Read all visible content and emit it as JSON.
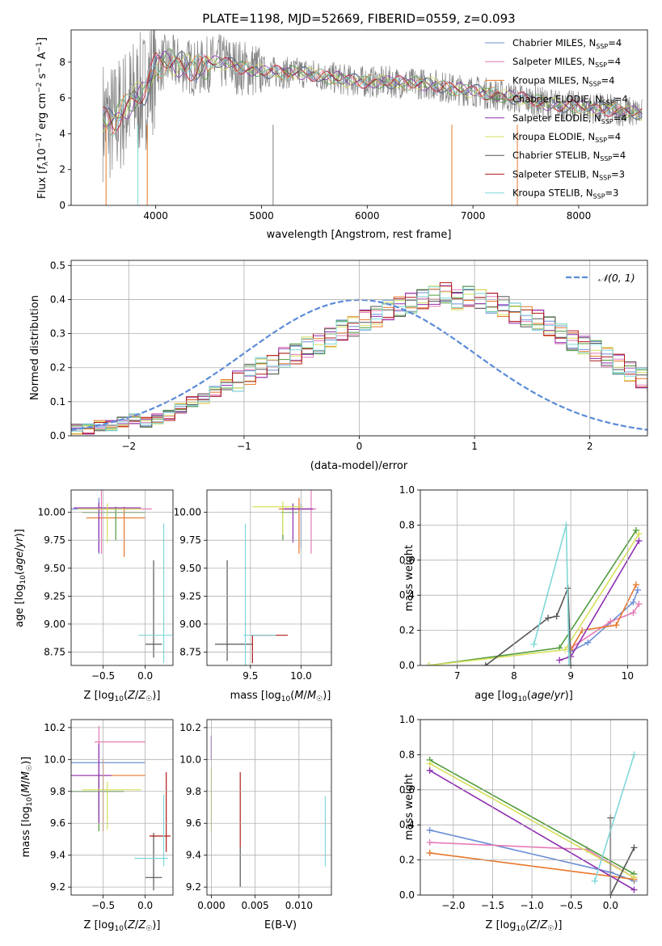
{
  "colors": {
    "chabrier_miles": "#6b8fd6",
    "salpeter_miles": "#e57ab5",
    "kroupa_miles": "#e8772a",
    "chabrier_elodie": "#4e9a3c",
    "salpeter_elodie": "#8e2fb0",
    "kroupa_elodie": "#d6e05a",
    "chabrier_stelib": "#555555",
    "salpeter_stelib": "#b01818",
    "kroupa_stelib": "#7fd8d8",
    "spectrum": "#808080",
    "gauss": "#5b8bd8"
  },
  "chart_data": [
    {
      "type": "line",
      "title": "PLATE=1198, MJD=52669, FIBERID=0559, z=0.093",
      "xlabel": "wavelength [Angstrom, rest frame]",
      "ylabel": "Flux [f_λ10⁻¹⁷ erg cm⁻² s⁻¹ A⁻¹]",
      "xlim": [
        3200,
        8650
      ],
      "ylim": [
        0,
        9.8
      ],
      "xticks": [
        "4000",
        "5000",
        "6000",
        "7000",
        "8000"
      ],
      "yticks": [
        "0",
        "2",
        "4",
        "6",
        "8"
      ],
      "legend": [
        "Chabrier MILES, N",
        "Salpeter MILES, N",
        "Kroupa MILES, N",
        "Chabrier ELODIE, N",
        "Salpeter ELODIE, N",
        "Kroupa ELODIE, N",
        "Chabrier STELIB, N",
        "Salpeter STELIB, N",
        "Kroupa STELIB, N"
      ],
      "legend_sub": "SSP",
      "legend_counts": [
        "=4",
        "=4",
        "=4",
        "=4",
        "=4",
        "=4",
        "=4",
        "=3",
        "=3"
      ],
      "legend_placement": "right",
      "model_x": [
        3500,
        3600,
        3700,
        3800,
        3900,
        4000,
        4100,
        4200,
        4300,
        4400,
        4500,
        4600,
        4700,
        4800,
        4900,
        5000,
        5200,
        5400,
        5600,
        5800,
        6000,
        6200,
        6400,
        6600,
        6800,
        7000,
        7200,
        7400,
        7600,
        7800,
        8000,
        8200,
        8400,
        8600
      ],
      "model_y": [
        4.8,
        4.6,
        5.4,
        6.0,
        6.4,
        7.8,
        8.0,
        7.9,
        7.8,
        7.6,
        7.9,
        8.0,
        7.9,
        7.7,
        7.6,
        7.5,
        7.4,
        7.4,
        7.2,
        7.0,
        6.9,
        6.9,
        6.8,
        6.8,
        6.5,
        6.4,
        6.2,
        6.0,
        5.8,
        5.6,
        5.5,
        5.4,
        5.3,
        5.1
      ]
    },
    {
      "type": "bar",
      "xlabel": "(data-model)/error",
      "ylabel": "Normed distribution",
      "xlim": [
        -2.5,
        2.5
      ],
      "ylim": [
        0,
        0.515
      ],
      "xticks": [
        "−2",
        "−1",
        "0",
        "1",
        "2"
      ],
      "yticks": [
        "0.0",
        "0.1",
        "0.2",
        "0.3",
        "0.4",
        "0.5"
      ],
      "legend": [
        "𝒩(0, 1)"
      ],
      "legend_placement": "top-right",
      "bin_width": 0.1,
      "hist_values": [
        0.02,
        0.02,
        0.03,
        0.03,
        0.04,
        0.05,
        0.04,
        0.05,
        0.06,
        0.08,
        0.1,
        0.11,
        0.13,
        0.15,
        0.16,
        0.18,
        0.2,
        0.21,
        0.23,
        0.24,
        0.26,
        0.27,
        0.29,
        0.31,
        0.32,
        0.34,
        0.35,
        0.37,
        0.38,
        0.39,
        0.4,
        0.41,
        0.42,
        0.4,
        0.41,
        0.4,
        0.39,
        0.38,
        0.36,
        0.35,
        0.34,
        0.32,
        0.3,
        0.28,
        0.27,
        0.25,
        0.23,
        0.21,
        0.19,
        0.17,
        0.16,
        0.14,
        0.12,
        0.11,
        0.1,
        0.09,
        0.07,
        0.06,
        0.05,
        0.05,
        0.04,
        0.04,
        0.03,
        0.03,
        0.02,
        0.02,
        0.02,
        0.02,
        0.02,
        0.02
      ],
      "hist_start": -2.5
    },
    {
      "type": "scatter",
      "xlabel": "Z [log₁₀(Z/Z☉)]",
      "ylabel": "age  [log₁₀(age/yr)]",
      "xlim": [
        -0.88,
        0.33
      ],
      "ylim": [
        8.63,
        10.2
      ],
      "xticks": [
        "−0.5",
        "0.0"
      ],
      "yticks": [
        "8.75",
        "9.00",
        "9.25",
        "9.50",
        "9.75",
        "10.00"
      ],
      "points": [
        {
          "x": -0.55,
          "y": 10.03,
          "xerr": [
            0.5,
            0.35
          ],
          "yerr": [
            0.4,
            0.1
          ],
          "c": "chabrier_miles"
        },
        {
          "x": -0.52,
          "y": 10.03,
          "xerr": [
            0.1,
            0.6
          ],
          "yerr": [
            0.4,
            0.18
          ],
          "c": "salpeter_miles"
        },
        {
          "x": -0.25,
          "y": 9.95,
          "xerr": [
            0.45,
            0.25
          ],
          "yerr": [
            0.35,
            0.1
          ],
          "c": "kroupa_miles"
        },
        {
          "x": -0.35,
          "y": 10.0,
          "xerr": [
            0.4,
            0.35
          ],
          "yerr": [
            0.25,
            0.05
          ],
          "c": "chabrier_elodie"
        },
        {
          "x": -0.55,
          "y": 10.04,
          "xerr": [
            0.3,
            0.5
          ],
          "yerr": [
            0.4,
            0.05
          ],
          "c": "salpeter_elodie"
        },
        {
          "x": -0.45,
          "y": 10.03,
          "xerr": [
            0.35,
            0.4
          ],
          "yerr": [
            0.3,
            0.05
          ],
          "c": "kroupa_elodie"
        },
        {
          "x": 0.1,
          "y": 8.82,
          "xerr": [
            0.1,
            0.1
          ],
          "yerr": [
            0.12,
            0.75
          ],
          "c": "chabrier_stelib"
        },
        {
          "x": 0.22,
          "y": 8.9,
          "xerr": [
            0.3,
            0.1
          ],
          "yerr": [
            0.25,
            1.0
          ],
          "c": "kroupa_stelib"
        }
      ]
    },
    {
      "type": "scatter",
      "xlabel": "mass [log₁₀(M/M☉)]",
      "xlim": [
        9.07,
        10.3
      ],
      "ylim": [
        8.63,
        10.2
      ],
      "xticks": [
        "9.5",
        "10.0"
      ],
      "yticks": [
        "8.75",
        "9.00",
        "9.25",
        "9.50",
        "9.75",
        "10.00"
      ],
      "points": [
        {
          "x": 10.0,
          "y": 10.03,
          "xerr": [
            0.2,
            0.1
          ],
          "yerr": [
            0.35,
            0.05
          ],
          "c": "chabrier_miles"
        },
        {
          "x": 10.1,
          "y": 10.03,
          "xerr": [
            0.3,
            0.05
          ],
          "yerr": [
            0.4,
            0.18
          ],
          "c": "salpeter_miles"
        },
        {
          "x": 9.98,
          "y": 10.03,
          "xerr": [
            0.2,
            0.1
          ],
          "yerr": [
            0.4,
            0.1
          ],
          "c": "kroupa_miles"
        },
        {
          "x": 9.82,
          "y": 10.0,
          "xerr": [
            0.02,
            0.15
          ],
          "yerr": [
            0.25,
            0.05
          ],
          "c": "chabrier_elodie"
        },
        {
          "x": 9.92,
          "y": 10.03,
          "xerr": [
            0.1,
            0.2
          ],
          "yerr": [
            0.3,
            0.05
          ],
          "c": "salpeter_elodie"
        },
        {
          "x": 9.82,
          "y": 10.05,
          "xerr": [
            0.3,
            0.2
          ],
          "yerr": [
            0.25,
            0.05
          ],
          "c": "kroupa_elodie"
        },
        {
          "x": 9.27,
          "y": 8.82,
          "xerr": [
            0.12,
            0.25
          ],
          "yerr": [
            0.15,
            0.75
          ],
          "c": "chabrier_stelib"
        },
        {
          "x": 9.52,
          "y": 8.9,
          "xerr": [
            0.02,
            0.35
          ],
          "yerr": [
            0.25,
            0.0
          ],
          "c": "salpeter_stelib"
        },
        {
          "x": 9.45,
          "y": 8.9,
          "xerr": [
            0.02,
            0.3
          ],
          "yerr": [
            0.3,
            1.0
          ],
          "c": "kroupa_stelib"
        }
      ]
    },
    {
      "type": "line",
      "xlabel": "age  [log₁₀(age/yr)]",
      "ylabel": "mass weight",
      "xlim": [
        6.35,
        10.35
      ],
      "ylim": [
        0,
        1.0
      ],
      "xticks": [
        "7",
        "8",
        "9",
        "10"
      ],
      "yticks": [
        "0.0",
        "0.2",
        "0.4",
        "0.6",
        "0.8",
        "1.0"
      ],
      "series": [
        {
          "c": "chabrier_miles",
          "x": [
            9.0,
            9.3,
            10.1,
            10.18
          ],
          "y": [
            0.08,
            0.13,
            0.36,
            0.43
          ]
        },
        {
          "c": "salpeter_miles",
          "x": [
            9.0,
            9.7,
            10.1,
            10.2
          ],
          "y": [
            0.1,
            0.25,
            0.3,
            0.35
          ]
        },
        {
          "c": "kroupa_miles",
          "x": [
            9.0,
            9.2,
            9.8,
            10.15
          ],
          "y": [
            0.09,
            0.2,
            0.23,
            0.46
          ]
        },
        {
          "c": "chabrier_elodie",
          "x": [
            6.5,
            8.8,
            10.15
          ],
          "y": [
            0.0,
            0.1,
            0.77
          ]
        },
        {
          "c": "salpeter_elodie",
          "x": [
            8.8,
            9.0,
            10.2
          ],
          "y": [
            0.03,
            0.05,
            0.71
          ]
        },
        {
          "c": "kroupa_elodie",
          "x": [
            6.5,
            8.9,
            10.2
          ],
          "y": [
            0.0,
            0.09,
            0.75
          ]
        },
        {
          "c": "chabrier_stelib",
          "x": [
            7.5,
            8.6,
            8.75,
            8.95,
            9.0
          ],
          "y": [
            0.0,
            0.27,
            0.28,
            0.44,
            0.0
          ]
        },
        {
          "c": "kroupa_stelib",
          "x": [
            8.35,
            8.92,
            8.97
          ],
          "y": [
            0.12,
            0.8,
            0.0
          ]
        }
      ]
    },
    {
      "type": "scatter",
      "xlabel": "Z [log₁₀(Z/Z☉)]",
      "ylabel": "mass [log₁₀(M/M☉)]",
      "xlim": [
        -0.88,
        0.33
      ],
      "ylim": [
        9.15,
        10.25
      ],
      "xticks": [
        "−0.5",
        "0.0"
      ],
      "yticks": [
        "9.2",
        "9.4",
        "9.6",
        "9.8",
        "10.0",
        "10.2"
      ],
      "points": [
        {
          "x": -0.55,
          "y": 9.98,
          "xerr": [
            0.45,
            0.55
          ],
          "yerr": [
            0.3,
            0.1
          ],
          "c": "chabrier_miles"
        },
        {
          "x": -0.55,
          "y": 10.11,
          "xerr": [
            0.05,
            0.55
          ],
          "yerr": [
            0.3,
            0.1
          ],
          "c": "salpeter_miles"
        },
        {
          "x": -0.5,
          "y": 9.9,
          "xerr": [
            0.3,
            0.5
          ],
          "yerr": [
            0.35,
            0.1
          ],
          "c": "kroupa_miles"
        },
        {
          "x": -0.55,
          "y": 9.8,
          "xerr": [
            0.5,
            0.3
          ],
          "yerr": [
            0.25,
            0.1
          ],
          "c": "chabrier_elodie"
        },
        {
          "x": -0.55,
          "y": 9.9,
          "xerr": [
            0.35,
            0.15
          ],
          "yerr": [
            0.3,
            0.2
          ],
          "c": "salpeter_elodie"
        },
        {
          "x": -0.45,
          "y": 9.81,
          "xerr": [
            0.3,
            0.4
          ],
          "yerr": [
            0.25,
            0.05
          ],
          "c": "kroupa_elodie"
        },
        {
          "x": 0.1,
          "y": 9.26,
          "xerr": [
            0.1,
            0.1
          ],
          "yerr": [
            0.08,
            0.28
          ],
          "c": "chabrier_stelib"
        },
        {
          "x": 0.25,
          "y": 9.52,
          "xerr": [
            0.2,
            0.05
          ],
          "yerr": [
            0.1,
            0.4
          ],
          "c": "salpeter_stelib"
        },
        {
          "x": 0.22,
          "y": 9.38,
          "xerr": [
            0.35,
            0.05
          ],
          "yerr": [
            0.05,
            0.4
          ],
          "c": "kroupa_stelib"
        }
      ]
    },
    {
      "type": "scatter",
      "xlabel": "E(B-V)",
      "xlim": [
        -0.0005,
        0.0137
      ],
      "ylim": [
        9.15,
        10.25
      ],
      "xticks": [
        "0.000",
        "0.005",
        "0.010"
      ],
      "yticks": [
        "9.2",
        "9.4",
        "9.6",
        "9.8",
        "10.0",
        "10.2"
      ],
      "points": [
        {
          "x": 0.0,
          "y": 10.1,
          "yerr": [
            0.1,
            0.05
          ],
          "c": "salpeter_elodie"
        },
        {
          "x": 0.0,
          "y": 9.75,
          "yerr": [
            0.2,
            0.2
          ],
          "c": "kroupa_elodie"
        },
        {
          "x": 0.0033,
          "y": 9.65,
          "yerr": [
            0.2,
            0.27
          ],
          "c": "salpeter_stelib"
        },
        {
          "x": 0.0033,
          "y": 9.3,
          "yerr": [
            0.1,
            0.15
          ],
          "c": "chabrier_stelib"
        },
        {
          "x": 0.013,
          "y": 9.55,
          "yerr": [
            0.22,
            0.22
          ],
          "c": "kroupa_stelib"
        }
      ]
    },
    {
      "type": "line",
      "xlabel": "Z [log₁₀(Z/Z☉)]",
      "ylabel": "mass weight",
      "xlim": [
        -2.42,
        0.47
      ],
      "ylim": [
        0,
        1.0
      ],
      "xticks": [
        "−2.0",
        "−1.5",
        "−1.0",
        "−0.5",
        "0.0"
      ],
      "yticks": [
        "0.0",
        "0.2",
        "0.4",
        "0.6",
        "0.8",
        "1.0"
      ],
      "series": [
        {
          "c": "chabrier_miles",
          "x": [
            -2.3,
            0.0,
            0.3
          ],
          "y": [
            0.37,
            0.13,
            0.08
          ]
        },
        {
          "c": "salpeter_miles",
          "x": [
            -2.3,
            -0.3,
            0.3
          ],
          "y": [
            0.3,
            0.26,
            0.1
          ]
        },
        {
          "c": "kroupa_miles",
          "x": [
            -2.3,
            0.3
          ],
          "y": [
            0.24,
            0.09
          ]
        },
        {
          "c": "chabrier_elodie",
          "x": [
            -2.3,
            0.3
          ],
          "y": [
            0.77,
            0.12
          ]
        },
        {
          "c": "salpeter_elodie",
          "x": [
            -2.3,
            0.3
          ],
          "y": [
            0.71,
            0.03
          ]
        },
        {
          "c": "kroupa_elodie",
          "x": [
            -2.3,
            0.3
          ],
          "y": [
            0.75,
            0.1
          ]
        },
        {
          "c": "chabrier_stelib",
          "x": [
            0.0,
            0.0,
            0.3
          ],
          "y": [
            0.44,
            0.0,
            0.27
          ]
        },
        {
          "c": "kroupa_stelib",
          "x": [
            -0.2,
            0.3
          ],
          "y": [
            0.08,
            0.8
          ]
        }
      ]
    }
  ]
}
